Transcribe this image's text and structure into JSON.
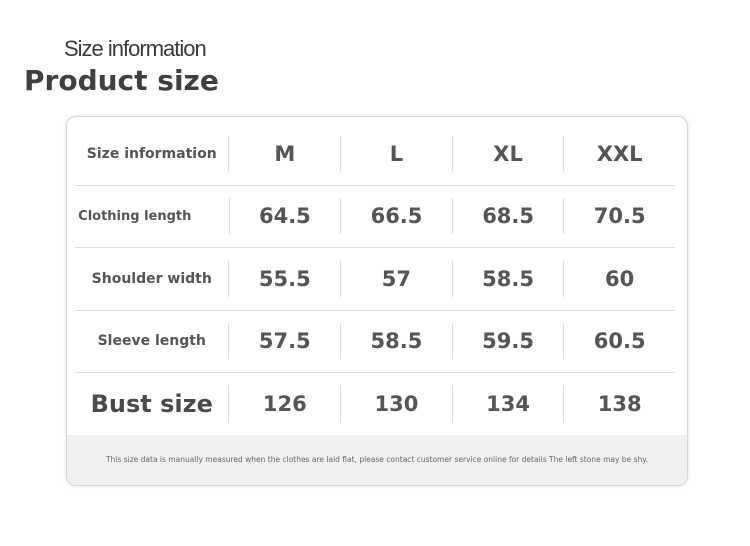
{
  "heading": {
    "subtitle": "Size information",
    "title": "Product size"
  },
  "table": {
    "header": {
      "label": "Size information",
      "sizes": [
        "M",
        "L",
        "XL",
        "XXL"
      ]
    },
    "rows": [
      {
        "label": "Clothing length",
        "values": [
          "64.5",
          "66.5",
          "68.5",
          "70.5"
        ]
      },
      {
        "label": "Shoulder width",
        "values": [
          "55.5",
          "57",
          "58.5",
          "60"
        ]
      },
      {
        "label": "Sleeve length",
        "values": [
          "57.5",
          "58.5",
          "59.5",
          "60.5"
        ]
      },
      {
        "label": "Bust size",
        "values": [
          "126",
          "130",
          "134",
          "138"
        ]
      }
    ]
  },
  "footnote": "This size data is manually measured when the clothes are laid flat, please contact customer service online for details   The left stone may be shy."
}
